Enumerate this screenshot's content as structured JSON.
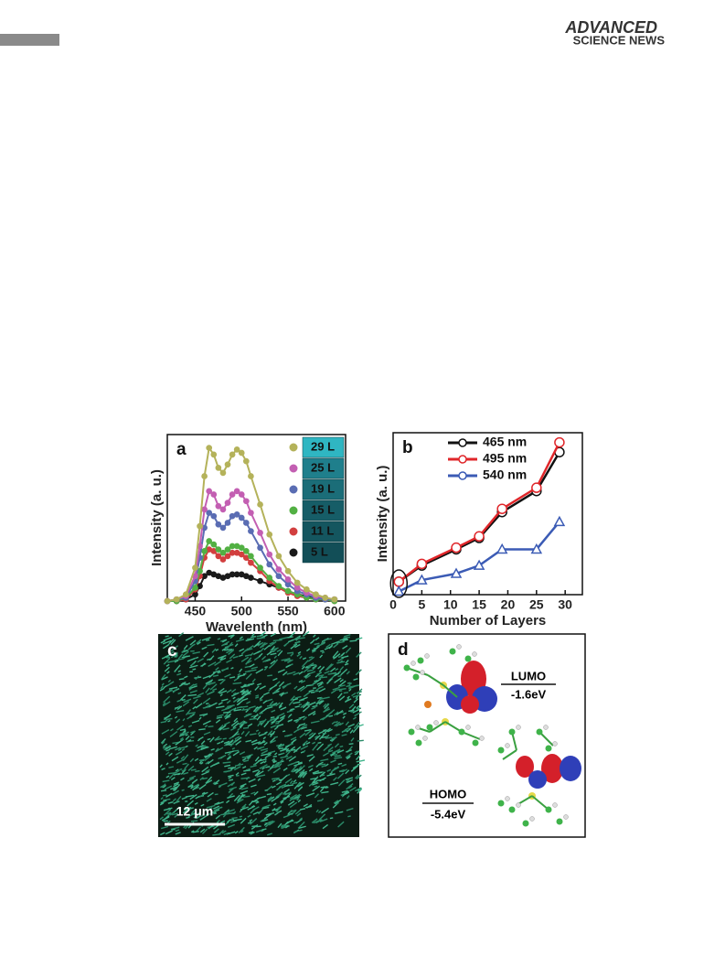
{
  "header": {
    "brand": [
      "ADVANCED",
      "SCIENCE NEWS"
    ]
  },
  "chart_data": [
    {
      "type": "line",
      "label": "a",
      "x_label": "Wavelenth (nm)",
      "y_label": "Intensity (a. u.)",
      "x": [
        420,
        430,
        440,
        450,
        455,
        460,
        465,
        470,
        475,
        480,
        485,
        490,
        495,
        500,
        505,
        510,
        520,
        530,
        540,
        550,
        560,
        570,
        580,
        590,
        600
      ],
      "xlim": [
        420,
        612
      ],
      "xticks": [
        450,
        500,
        550,
        600
      ],
      "ylim": [
        0,
        100
      ],
      "series": [
        {
          "name": "29 L",
          "color": "#b4b25a",
          "swatch_color": "#2fb6c2",
          "values": [
            0,
            1,
            4,
            20,
            45,
            75,
            92,
            88,
            80,
            77,
            82,
            88,
            91,
            89,
            84,
            75,
            58,
            40,
            27,
            18,
            11,
            7,
            4,
            2,
            1
          ]
        },
        {
          "name": "25 L",
          "color": "#c35fb2",
          "swatch_color": "#1f7f8c",
          "values": [
            0,
            1,
            3,
            15,
            33,
            55,
            66,
            64,
            57,
            55,
            59,
            64,
            66,
            64,
            60,
            53,
            41,
            28,
            19,
            13,
            8,
            5,
            3,
            2,
            1
          ]
        },
        {
          "name": "19 L",
          "color": "#5a6db3",
          "swatch_color": "#1b6d78",
          "values": [
            0,
            1,
            2,
            12,
            26,
            44,
            53,
            51,
            46,
            44,
            47,
            51,
            52,
            50,
            47,
            42,
            32,
            22,
            15,
            10,
            6,
            4,
            2,
            1,
            1
          ]
        },
        {
          "name": "15 L",
          "color": "#52b043",
          "swatch_color": "#165d67",
          "values": [
            0,
            0,
            2,
            8,
            18,
            30,
            36,
            34,
            31,
            29,
            31,
            33,
            33,
            32,
            30,
            27,
            20,
            14,
            9,
            6,
            4,
            2,
            1,
            1,
            0
          ]
        },
        {
          "name": "11 L",
          "color": "#d23f3f",
          "swatch_color": "#14565f",
          "values": [
            0,
            0,
            1,
            7,
            15,
            26,
            31,
            30,
            27,
            25,
            27,
            29,
            29,
            28,
            26,
            23,
            18,
            12,
            8,
            5,
            3,
            2,
            1,
            1,
            0
          ]
        },
        {
          "name": "5 L",
          "color": "#1a1a1a",
          "swatch_color": "#124e57",
          "values": [
            0,
            0,
            1,
            4,
            9,
            15,
            17,
            16,
            15,
            14,
            15,
            16,
            16,
            16,
            15,
            14,
            12,
            10,
            8,
            6,
            4,
            3,
            2,
            1,
            1
          ]
        }
      ]
    },
    {
      "type": "line",
      "label": "b",
      "x_label": "Number of Layers",
      "y_label": "Intensity (a. u.)",
      "x": [
        1,
        5,
        11,
        15,
        19,
        25,
        29
      ],
      "xlim": [
        0,
        33
      ],
      "xticks": [
        0,
        5,
        10,
        15,
        20,
        25,
        30
      ],
      "ylim": [
        0,
        100
      ],
      "series": [
        {
          "name": "465 nm",
          "color": "#111111",
          "values": [
            8,
            18,
            28,
            35,
            51,
            64,
            88
          ]
        },
        {
          "name": "495 nm",
          "color": "#e0262a",
          "values": [
            8,
            19,
            29,
            36,
            53,
            66,
            94
          ]
        },
        {
          "name": "540 nm",
          "color": "#3b5bb5",
          "values": [
            2,
            9,
            13,
            18,
            28,
            28,
            45
          ]
        }
      ]
    }
  ],
  "panels": {
    "c": {
      "label": "c",
      "scale_bar": "12 μm"
    },
    "d": {
      "label": "d",
      "lumo": "LUMO",
      "lumo_energy": "-1.6eV",
      "homo": "HOMO",
      "homo_energy": "-5.4eV"
    }
  }
}
